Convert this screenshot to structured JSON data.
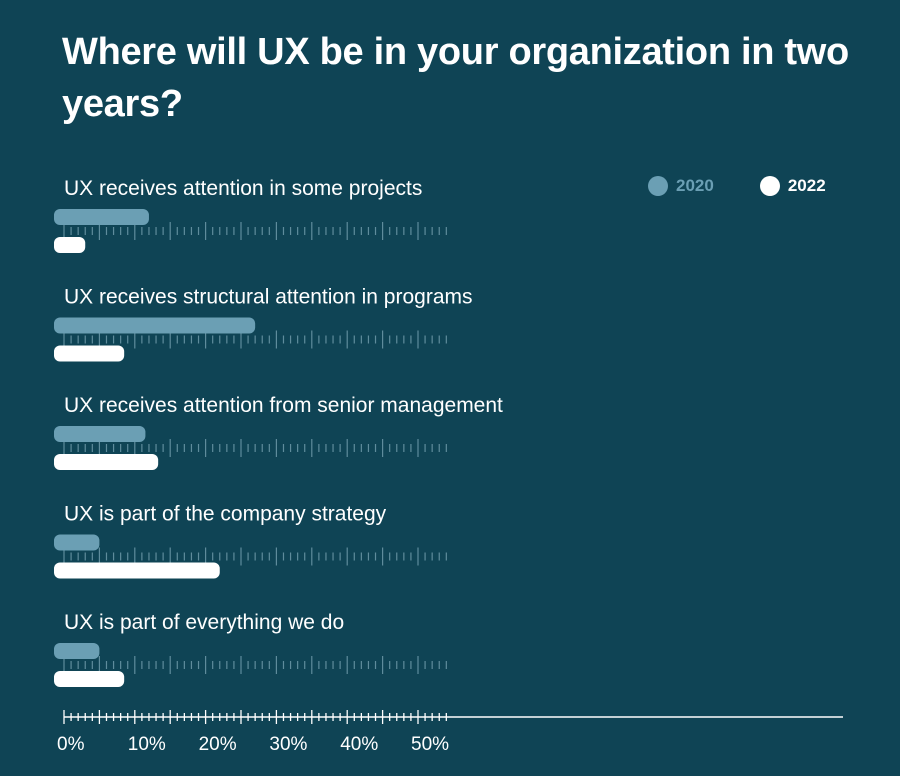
{
  "title": "Where will UX be in your organization in two years?",
  "colors": {
    "background": "#0f4455",
    "series_2020": "#6b9fb4",
    "series_2022": "#ffffff",
    "guide": "#7aa5b4"
  },
  "chart_data": {
    "type": "bar",
    "orientation": "horizontal",
    "title": "Where will UX be in your organization in two years?",
    "categories": [
      "UX receives attention in some projects",
      "UX receives structural attention in programs",
      "UX receives attention from senior management",
      "UX is part of the company strategy",
      "UX is part of everything we do"
    ],
    "series": [
      {
        "name": "2020",
        "values": [
          12,
          27,
          11.5,
          5,
          5
        ]
      },
      {
        "name": "2022",
        "values": [
          3,
          8.5,
          13.3,
          22,
          8.5
        ]
      }
    ],
    "xlim": [
      0,
      55
    ],
    "xticks": [
      0,
      10,
      20,
      30,
      40,
      50
    ],
    "xtick_labels": [
      "0%",
      "10%",
      "20%",
      "30%",
      "40%",
      "50%"
    ],
    "legend_position": "top-right"
  }
}
